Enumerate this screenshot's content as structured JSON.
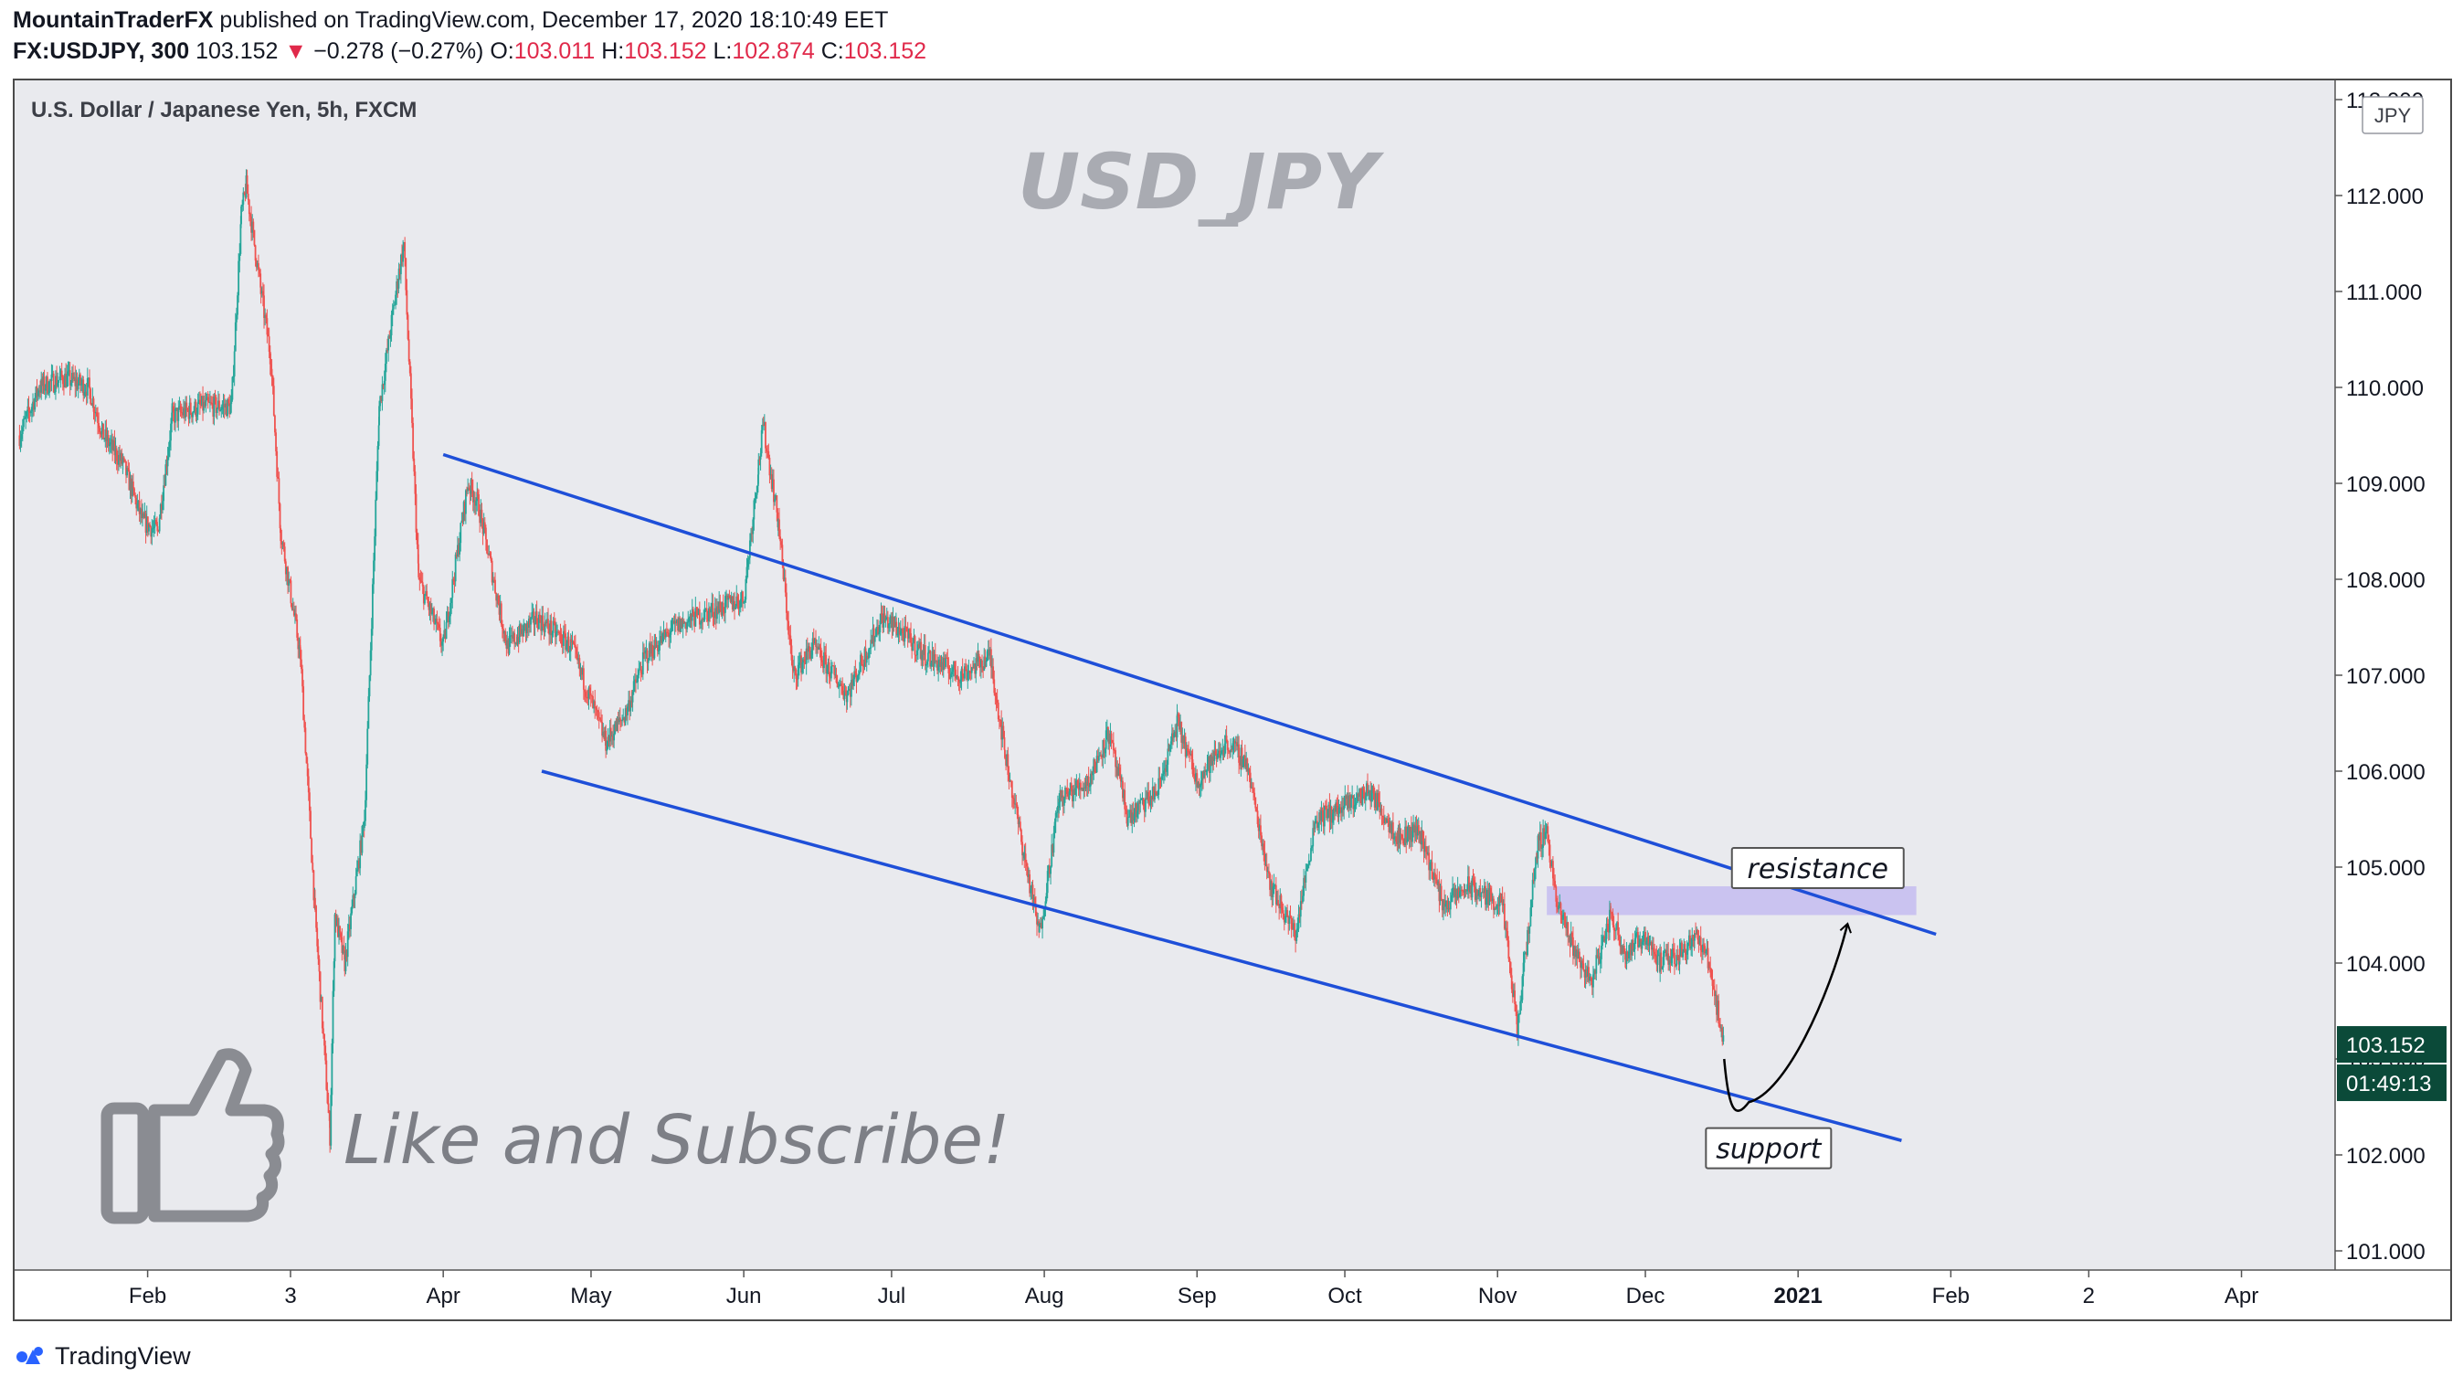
{
  "header": {
    "author": "MountainTraderFX",
    "published_text": "published on TradingView.com, December 17, 2020 18:10:49 EET",
    "symbol": "FX:USDJPY, 300",
    "price": "103.152",
    "change_arrow": "▼",
    "change": "−0.278 (−0.27%)",
    "open_label": "O:",
    "open": "103.011",
    "high_label": "H:",
    "high": "103.152",
    "low_label": "L:",
    "low": "102.874",
    "close_label": "C:",
    "close": "103.152"
  },
  "footer": {
    "brand": "TradingView"
  },
  "chart_data": {
    "type": "candlestick",
    "instrument_label": "U.S. Dollar / Japanese Yen, 5h, FXCM",
    "watermark": "USD_JPY",
    "currency_badge": "JPY",
    "promo_text": "Like and Subscribe!",
    "last_price": "103.152",
    "countdown": "01:49:13",
    "y_ticks": [
      "113.000",
      "112.000",
      "111.000",
      "110.000",
      "109.000",
      "108.000",
      "107.000",
      "106.000",
      "105.000",
      "104.000",
      "103.000",
      "102.000",
      "101.000"
    ],
    "y_tick_values": [
      113,
      112,
      111,
      110,
      109,
      108,
      107,
      106,
      105,
      104,
      103,
      102,
      101
    ],
    "ylim": [
      100.8,
      113.2
    ],
    "x_ticks": [
      {
        "label": "Feb",
        "date": "2020-02-01",
        "bold": false
      },
      {
        "label": "3",
        "date": "2020-03-01",
        "bold": false
      },
      {
        "label": "Apr",
        "date": "2020-04-01",
        "bold": false
      },
      {
        "label": "May",
        "date": "2020-05-01",
        "bold": false
      },
      {
        "label": "Jun",
        "date": "2020-06-01",
        "bold": false
      },
      {
        "label": "Jul",
        "date": "2020-07-01",
        "bold": false
      },
      {
        "label": "Aug",
        "date": "2020-08-01",
        "bold": false
      },
      {
        "label": "Sep",
        "date": "2020-09-01",
        "bold": false
      },
      {
        "label": "Oct",
        "date": "2020-10-01",
        "bold": false
      },
      {
        "label": "Nov",
        "date": "2020-11-01",
        "bold": false
      },
      {
        "label": "Dec",
        "date": "2020-12-01",
        "bold": false
      },
      {
        "label": "2021",
        "date": "2021-01-01",
        "bold": true
      },
      {
        "label": "Feb",
        "date": "2021-02-01",
        "bold": false
      },
      {
        "label": "2",
        "date": "2021-03-01",
        "bold": false
      },
      {
        "label": "Apr",
        "date": "2021-04-01",
        "bold": false
      }
    ],
    "xlim": [
      "2020-01-05",
      "2021-04-20"
    ],
    "price_path": [
      {
        "date": "2020-01-06",
        "price": 109.5
      },
      {
        "date": "2020-01-10",
        "price": 110.0
      },
      {
        "date": "2020-01-15",
        "price": 110.1
      },
      {
        "date": "2020-01-20",
        "price": 110.0
      },
      {
        "date": "2020-01-23",
        "price": 109.5
      },
      {
        "date": "2020-01-27",
        "price": 109.2
      },
      {
        "date": "2020-01-31",
        "price": 108.6
      },
      {
        "date": "2020-02-03",
        "price": 108.5
      },
      {
        "date": "2020-02-06",
        "price": 109.7
      },
      {
        "date": "2020-02-12",
        "price": 109.8
      },
      {
        "date": "2020-02-18",
        "price": 109.8
      },
      {
        "date": "2020-02-20",
        "price": 111.8
      },
      {
        "date": "2020-02-21",
        "price": 112.1
      },
      {
        "date": "2020-02-24",
        "price": 111.0
      },
      {
        "date": "2020-02-26",
        "price": 110.3
      },
      {
        "date": "2020-02-28",
        "price": 108.5
      },
      {
        "date": "2020-03-03",
        "price": 107.2
      },
      {
        "date": "2020-03-06",
        "price": 104.5
      },
      {
        "date": "2020-03-09",
        "price": 102.2
      },
      {
        "date": "2020-03-10",
        "price": 104.5
      },
      {
        "date": "2020-03-12",
        "price": 104.0
      },
      {
        "date": "2020-03-16",
        "price": 105.5
      },
      {
        "date": "2020-03-19",
        "price": 109.8
      },
      {
        "date": "2020-03-23",
        "price": 111.2
      },
      {
        "date": "2020-03-24",
        "price": 111.5
      },
      {
        "date": "2020-03-27",
        "price": 108.0
      },
      {
        "date": "2020-04-01",
        "price": 107.3
      },
      {
        "date": "2020-04-06",
        "price": 109.0
      },
      {
        "date": "2020-04-08",
        "price": 108.8
      },
      {
        "date": "2020-04-14",
        "price": 107.3
      },
      {
        "date": "2020-04-20",
        "price": 107.6
      },
      {
        "date": "2020-04-27",
        "price": 107.3
      },
      {
        "date": "2020-05-04",
        "price": 106.3
      },
      {
        "date": "2020-05-08",
        "price": 106.6
      },
      {
        "date": "2020-05-12",
        "price": 107.2
      },
      {
        "date": "2020-05-18",
        "price": 107.5
      },
      {
        "date": "2020-05-22",
        "price": 107.6
      },
      {
        "date": "2020-05-27",
        "price": 107.7
      },
      {
        "date": "2020-06-01",
        "price": 107.8
      },
      {
        "date": "2020-06-04",
        "price": 109.2
      },
      {
        "date": "2020-06-05",
        "price": 109.6
      },
      {
        "date": "2020-06-08",
        "price": 108.6
      },
      {
        "date": "2020-06-11",
        "price": 107.0
      },
      {
        "date": "2020-06-15",
        "price": 107.3
      },
      {
        "date": "2020-06-22",
        "price": 106.8
      },
      {
        "date": "2020-06-29",
        "price": 107.6
      },
      {
        "date": "2020-07-02",
        "price": 107.5
      },
      {
        "date": "2020-07-08",
        "price": 107.2
      },
      {
        "date": "2020-07-15",
        "price": 107.0
      },
      {
        "date": "2020-07-21",
        "price": 107.2
      },
      {
        "date": "2020-07-24",
        "price": 106.2
      },
      {
        "date": "2020-07-28",
        "price": 105.1
      },
      {
        "date": "2020-07-31",
        "price": 104.3
      },
      {
        "date": "2020-08-04",
        "price": 105.7
      },
      {
        "date": "2020-08-10",
        "price": 105.9
      },
      {
        "date": "2020-08-14",
        "price": 106.4
      },
      {
        "date": "2020-08-18",
        "price": 105.5
      },
      {
        "date": "2020-08-24",
        "price": 105.8
      },
      {
        "date": "2020-08-28",
        "price": 106.5
      },
      {
        "date": "2020-09-01",
        "price": 105.9
      },
      {
        "date": "2020-09-07",
        "price": 106.3
      },
      {
        "date": "2020-09-11",
        "price": 106.1
      },
      {
        "date": "2020-09-16",
        "price": 104.8
      },
      {
        "date": "2020-09-21",
        "price": 104.3
      },
      {
        "date": "2020-09-25",
        "price": 105.5
      },
      {
        "date": "2020-09-30",
        "price": 105.6
      },
      {
        "date": "2020-10-06",
        "price": 105.8
      },
      {
        "date": "2020-10-12",
        "price": 105.3
      },
      {
        "date": "2020-10-16",
        "price": 105.4
      },
      {
        "date": "2020-10-21",
        "price": 104.6
      },
      {
        "date": "2020-10-26",
        "price": 104.8
      },
      {
        "date": "2020-11-02",
        "price": 104.6
      },
      {
        "date": "2020-11-05",
        "price": 103.3
      },
      {
        "date": "2020-11-09",
        "price": 105.2
      },
      {
        "date": "2020-11-11",
        "price": 105.4
      },
      {
        "date": "2020-11-13",
        "price": 104.6
      },
      {
        "date": "2020-11-17",
        "price": 104.1
      },
      {
        "date": "2020-11-20",
        "price": 103.8
      },
      {
        "date": "2020-11-24",
        "price": 104.5
      },
      {
        "date": "2020-11-27",
        "price": 104.1
      },
      {
        "date": "2020-12-01",
        "price": 104.3
      },
      {
        "date": "2020-12-04",
        "price": 104.0
      },
      {
        "date": "2020-12-08",
        "price": 104.1
      },
      {
        "date": "2020-12-11",
        "price": 104.3
      },
      {
        "date": "2020-12-14",
        "price": 104.0
      },
      {
        "date": "2020-12-16",
        "price": 103.4
      },
      {
        "date": "2020-12-17",
        "price": 103.15
      }
    ],
    "trendlines": [
      {
        "name": "upper-channel-line",
        "color": "#1e4fd8",
        "start": {
          "date": "2020-04-01",
          "price": 109.3
        },
        "end": {
          "date": "2021-01-29",
          "price": 104.3
        }
      },
      {
        "name": "lower-channel-line",
        "color": "#1e4fd8",
        "start": {
          "date": "2020-04-21",
          "price": 106.0
        },
        "end": {
          "date": "2021-01-22",
          "price": 102.15
        }
      }
    ],
    "zone": {
      "name": "resistance-zone",
      "color": "#c6bff0",
      "from_date": "2020-11-11",
      "to_date": "2021-01-25",
      "top": 104.8,
      "bottom": 104.5
    },
    "projection": {
      "color": "#000000",
      "points": [
        {
          "date": "2020-12-17",
          "price": 103.0
        },
        {
          "date": "2020-12-22",
          "price": 102.55
        },
        {
          "date": "2021-01-11",
          "price": 104.4
        }
      ]
    },
    "annotations": [
      {
        "name": "resistance-label",
        "text": "resistance",
        "date": "2021-01-05",
        "price": 104.99
      },
      {
        "name": "support-label",
        "text": "support",
        "date": "2020-12-26",
        "price": 102.07
      }
    ],
    "colors": {
      "up": "#26a69a",
      "down": "#ef5350",
      "background": "#e9eaee",
      "price_tag": "#0b4a39"
    }
  }
}
